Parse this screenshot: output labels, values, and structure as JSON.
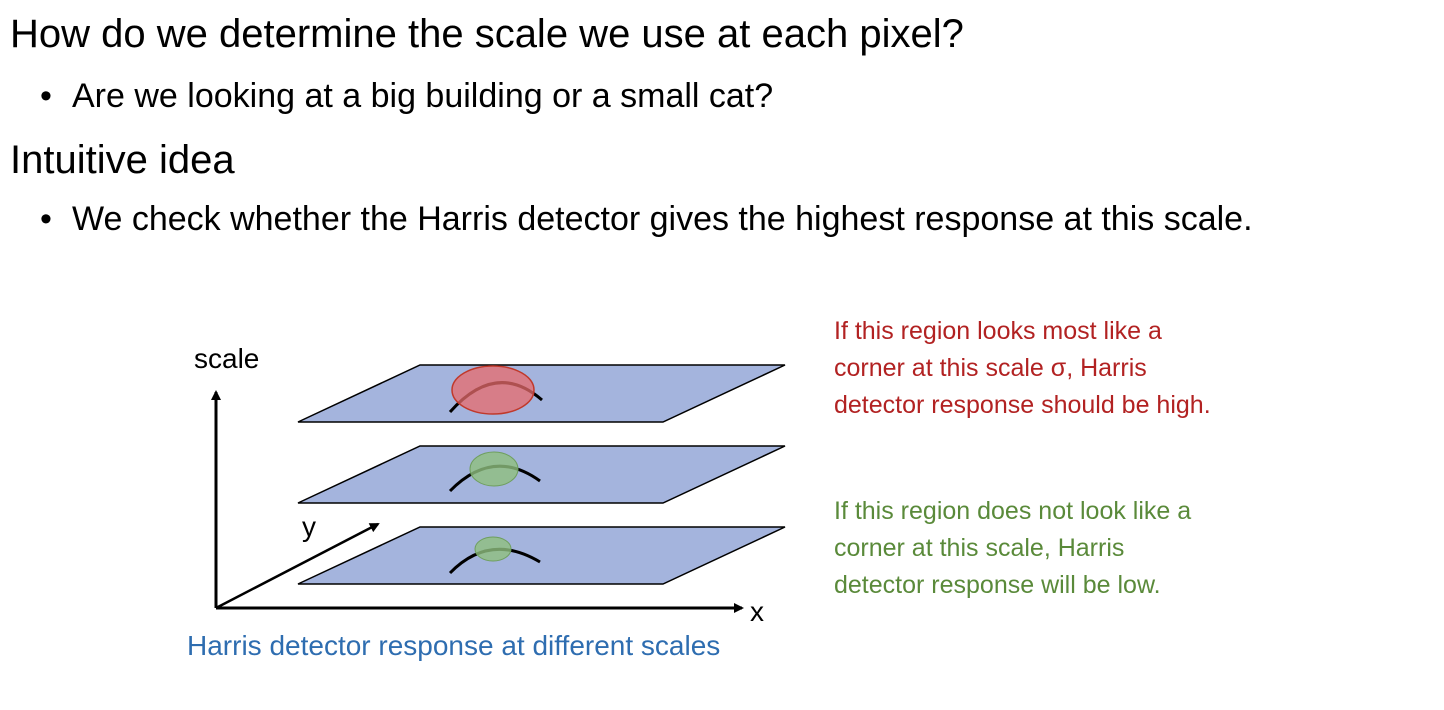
{
  "bullets": {
    "heading_1": "How do we determine the scale we use at each pixel?",
    "bullet_1": "Are we looking at a big building or a small cat?",
    "heading_2": "Intuitive idea",
    "bullet_2": "We check whether the Harris detector gives the highest response at this scale.",
    "bullet_symbol": "•"
  },
  "diagram": {
    "axis_scale": "scale",
    "axis_y": "y",
    "axis_x": "x",
    "caption": "Harris detector response at different scales",
    "annotation_high": {
      "line_1": "If this region looks most like a",
      "line_2": "corner at this scale σ, Harris",
      "line_3": "detector response should be high."
    },
    "annotation_low": {
      "line_1": "If this region does not look like a",
      "line_2": "corner at this scale, Harris",
      "line_3": "detector response will be low."
    }
  },
  "colors": {
    "plane_fill": "#a4b4dd",
    "high_response": "#e86b6b",
    "low_response": "#8fbf7e",
    "annotation_high_text": "#b22222",
    "annotation_low_text": "#5a8a3a",
    "caption_text": "#2e6db0"
  }
}
